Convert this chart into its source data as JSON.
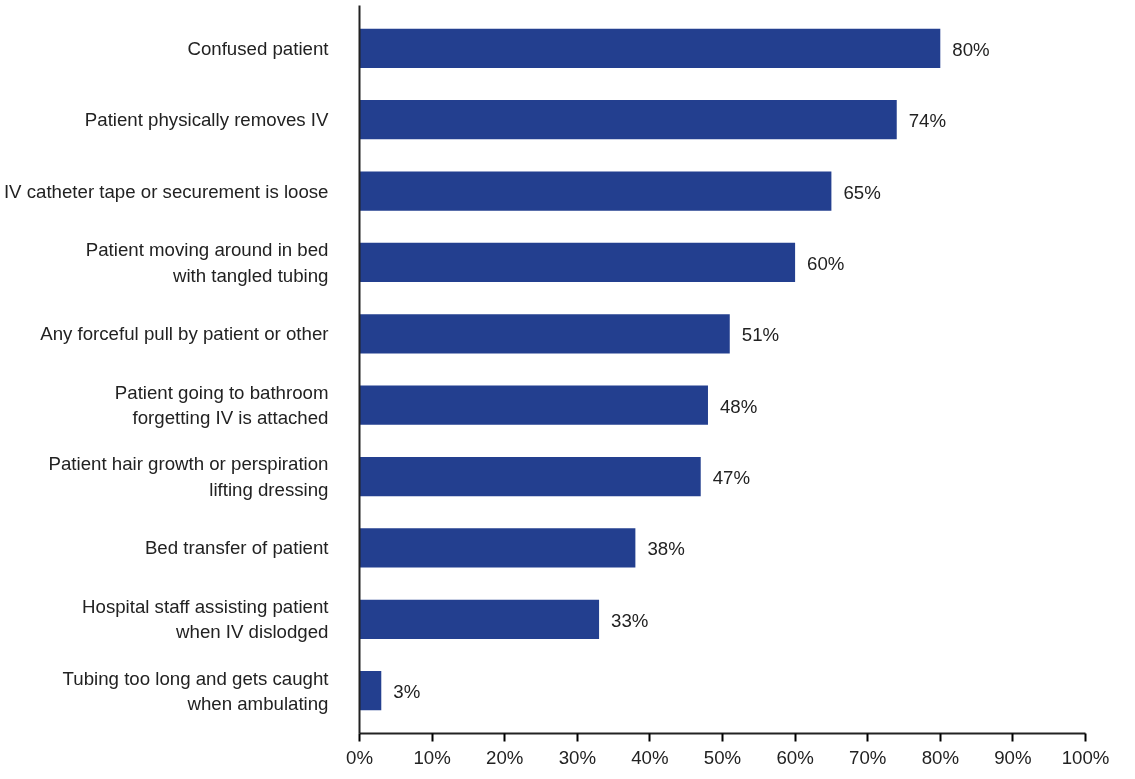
{
  "chart_data": {
    "type": "bar",
    "orientation": "horizontal",
    "categories": [
      "Confused patient",
      "Patient physically removes IV",
      "IV catheter tape or securement is loose",
      "Patient moving around in bed\nwith tangled tubing",
      "Any forceful pull by patient or other",
      "Patient going to bathroom\nforgetting IV is attached",
      "Patient hair growth or perspiration\nlifting dressing",
      "Bed transfer of patient",
      "Hospital staff assisting patient\nwhen IV dislodged",
      "Tubing too long and gets caught\nwhen ambulating"
    ],
    "values": [
      80,
      74,
      65,
      60,
      51,
      48,
      47,
      38,
      33,
      3
    ],
    "value_labels": [
      "80%",
      "74%",
      "65%",
      "60%",
      "51%",
      "48%",
      "47%",
      "38%",
      "33%",
      "3%"
    ],
    "color": "#233f8f",
    "xlim": [
      0,
      100
    ],
    "xticks": [
      {
        "value": 0,
        "label": "0%"
      },
      {
        "value": 10,
        "label": "10%"
      },
      {
        "value": 20,
        "label": "20%"
      },
      {
        "value": 30,
        "label": "30%"
      },
      {
        "value": 40,
        "label": "40%"
      },
      {
        "value": 50,
        "label": "50%"
      },
      {
        "value": 60,
        "label": "60%"
      },
      {
        "value": 70,
        "label": "70%"
      },
      {
        "value": 80,
        "label": "80%"
      },
      {
        "value": 90,
        "label": "90%"
      },
      {
        "value": 100,
        "label": "100%"
      }
    ],
    "grid": false
  }
}
